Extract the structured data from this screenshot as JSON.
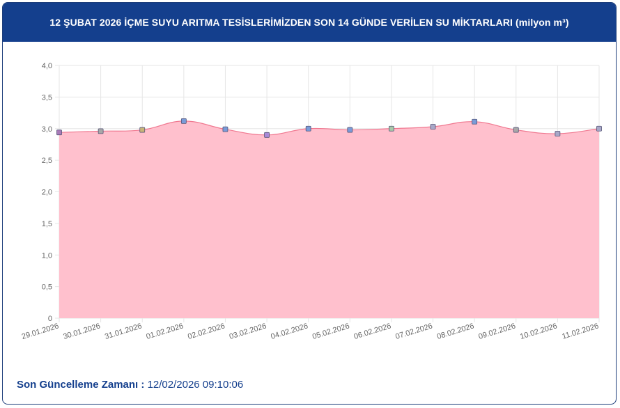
{
  "header": {
    "title": "12 ŞUBAT 2026 İÇME SUYU ARITMA TESİSLERİMİZDEN SON 14 GÜNDE VERİLEN SU MİKTARLARI (milyon m³)"
  },
  "footer": {
    "label": "Son Güncelleme Zamanı :",
    "value": "12/02/2026 09:10:06"
  },
  "colors": {
    "header_bg": "#143f8d",
    "area_fill": "#ffc0cd",
    "line": "#f07890",
    "grid": "#e6e6e6"
  },
  "chart_data": {
    "type": "area",
    "title": "12 ŞUBAT 2026 İÇME SUYU ARITMA TESİSLERİMİZDEN SON 14 GÜNDE VERİLEN SU MİKTARLARI (milyon m³)",
    "xlabel": "",
    "ylabel": "",
    "categories": [
      "29.01.2026",
      "30.01.2026",
      "31.01.2026",
      "01.02.2026",
      "02.02.2026",
      "03.02.2026",
      "04.02.2026",
      "05.02.2026",
      "06.02.2026",
      "07.02.2026",
      "08.02.2026",
      "09.02.2026",
      "10.02.2026",
      "11.02.2026"
    ],
    "values": [
      2.94,
      2.96,
      2.98,
      3.12,
      2.99,
      2.9,
      3.0,
      2.98,
      3.0,
      3.03,
      3.11,
      2.98,
      2.92,
      3.0
    ],
    "point_colors": [
      "#a87ab8",
      "#a8a8a8",
      "#c8b478",
      "#7a9bd8",
      "#7a9bd8",
      "#a88ad8",
      "#7a9bd8",
      "#7a9bd8",
      "#a8c8a8",
      "#a8a8c8",
      "#7a9bd8",
      "#a8a8a8",
      "#a8a8c8",
      "#a8a8c8"
    ],
    "ylim": [
      0,
      4
    ],
    "yticks": [
      "0",
      "0,5",
      "1,0",
      "1,5",
      "2,0",
      "2,5",
      "3,0",
      "3,5",
      "4,0"
    ],
    "grid": true,
    "legend": "none"
  }
}
